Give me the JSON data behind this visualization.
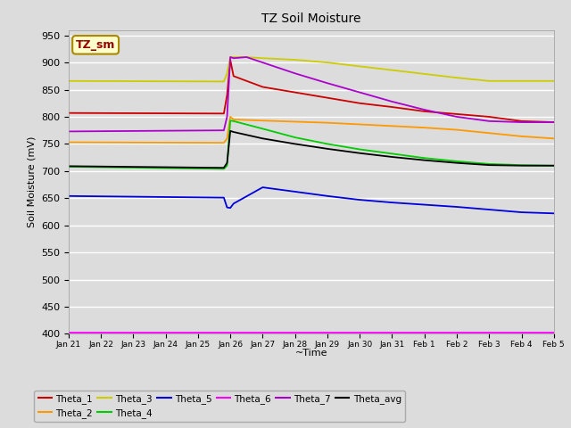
{
  "title": "TZ Soil Moisture",
  "xlabel": "~Time",
  "ylabel": "Soil Moisture (mV)",
  "ylim": [
    400,
    960
  ],
  "yticks": [
    400,
    450,
    500,
    550,
    600,
    650,
    700,
    750,
    800,
    850,
    900,
    950
  ],
  "bg_color": "#dcdcdc",
  "series": {
    "Theta_1": {
      "color": "#cc0000",
      "points": [
        [
          0,
          807
        ],
        [
          4.8,
          806
        ],
        [
          4.9,
          840
        ],
        [
          5.0,
          905
        ],
        [
          5.1,
          875
        ],
        [
          6,
          855
        ],
        [
          7,
          845
        ],
        [
          8,
          835
        ],
        [
          9,
          825
        ],
        [
          10,
          818
        ],
        [
          11,
          810
        ],
        [
          12,
          805
        ],
        [
          13,
          800
        ],
        [
          14,
          792
        ],
        [
          15,
          790
        ]
      ]
    },
    "Theta_2": {
      "color": "#ff9900",
      "points": [
        [
          0,
          753
        ],
        [
          4.8,
          752
        ],
        [
          4.9,
          760
        ],
        [
          5.0,
          800
        ],
        [
          5.1,
          795
        ],
        [
          6,
          793
        ],
        [
          7,
          791
        ],
        [
          8,
          789
        ],
        [
          9,
          786
        ],
        [
          10,
          783
        ],
        [
          11,
          780
        ],
        [
          12,
          776
        ],
        [
          13,
          770
        ],
        [
          14,
          764
        ],
        [
          15,
          760
        ]
      ]
    },
    "Theta_3": {
      "color": "#cccc00",
      "points": [
        [
          0,
          866
        ],
        [
          4.8,
          865
        ],
        [
          4.9,
          880
        ],
        [
          5.0,
          910
        ],
        [
          5.1,
          910
        ],
        [
          5.5,
          910
        ],
        [
          6,
          908
        ],
        [
          7,
          905
        ],
        [
          8,
          900
        ],
        [
          9,
          893
        ],
        [
          10,
          886
        ],
        [
          11,
          879
        ],
        [
          12,
          872
        ],
        [
          13,
          866
        ],
        [
          14,
          866
        ],
        [
          15,
          866
        ]
      ]
    },
    "Theta_4": {
      "color": "#00cc00",
      "points": [
        [
          0,
          708
        ],
        [
          4.8,
          704
        ],
        [
          4.9,
          710
        ],
        [
          5.0,
          793
        ],
        [
          5.1,
          792
        ],
        [
          6,
          778
        ],
        [
          7,
          762
        ],
        [
          8,
          750
        ],
        [
          9,
          740
        ],
        [
          10,
          732
        ],
        [
          11,
          724
        ],
        [
          12,
          718
        ],
        [
          13,
          713
        ],
        [
          14,
          711
        ],
        [
          15,
          710
        ]
      ]
    },
    "Theta_5": {
      "color": "#0000dd",
      "points": [
        [
          0,
          654
        ],
        [
          4.8,
          651
        ],
        [
          4.9,
          633
        ],
        [
          5.0,
          632
        ],
        [
          5.1,
          640
        ],
        [
          6,
          670
        ],
        [
          7,
          662
        ],
        [
          8,
          654
        ],
        [
          9,
          647
        ],
        [
          10,
          642
        ],
        [
          11,
          638
        ],
        [
          12,
          634
        ],
        [
          13,
          629
        ],
        [
          14,
          624
        ],
        [
          15,
          622
        ]
      ]
    },
    "Theta_6": {
      "color": "#ff00ff",
      "points": [
        [
          0,
          403
        ],
        [
          5,
          403
        ],
        [
          5.0,
          403
        ],
        [
          10,
          403
        ],
        [
          15,
          403
        ]
      ]
    },
    "Theta_7": {
      "color": "#aa00cc",
      "points": [
        [
          0,
          773
        ],
        [
          4.8,
          775
        ],
        [
          4.9,
          800
        ],
        [
          5.0,
          910
        ],
        [
          5.1,
          908
        ],
        [
          5.5,
          910
        ],
        [
          6,
          900
        ],
        [
          7,
          880
        ],
        [
          8,
          862
        ],
        [
          9,
          845
        ],
        [
          10,
          828
        ],
        [
          11,
          813
        ],
        [
          12,
          800
        ],
        [
          13,
          792
        ],
        [
          14,
          790
        ],
        [
          15,
          790
        ]
      ]
    },
    "Theta_avg": {
      "color": "#000000",
      "points": [
        [
          0,
          709
        ],
        [
          4.8,
          706
        ],
        [
          4.9,
          715
        ],
        [
          5.0,
          774
        ],
        [
          5.1,
          772
        ],
        [
          6,
          760
        ],
        [
          7,
          750
        ],
        [
          8,
          741
        ],
        [
          9,
          733
        ],
        [
          10,
          726
        ],
        [
          11,
          720
        ],
        [
          12,
          715
        ],
        [
          13,
          711
        ],
        [
          14,
          710
        ],
        [
          15,
          710
        ]
      ]
    }
  },
  "xtick_labels": [
    "Jan 21",
    "Jan 22",
    "Jan 23",
    "Jan 24",
    "Jan 25",
    "Jan 26",
    "Jan 27",
    "Jan 28",
    "Jan 29",
    "Jan 30",
    "Jan 31",
    "Feb 1",
    "Feb 2",
    "Feb 3",
    "Feb 4",
    "Feb 5"
  ],
  "xtick_positions": [
    0,
    1,
    2,
    3,
    4,
    5,
    6,
    7,
    8,
    9,
    10,
    11,
    12,
    13,
    14,
    15
  ],
  "legend_order": [
    "Theta_1",
    "Theta_2",
    "Theta_3",
    "Theta_4",
    "Theta_5",
    "Theta_6",
    "Theta_7",
    "Theta_avg"
  ]
}
